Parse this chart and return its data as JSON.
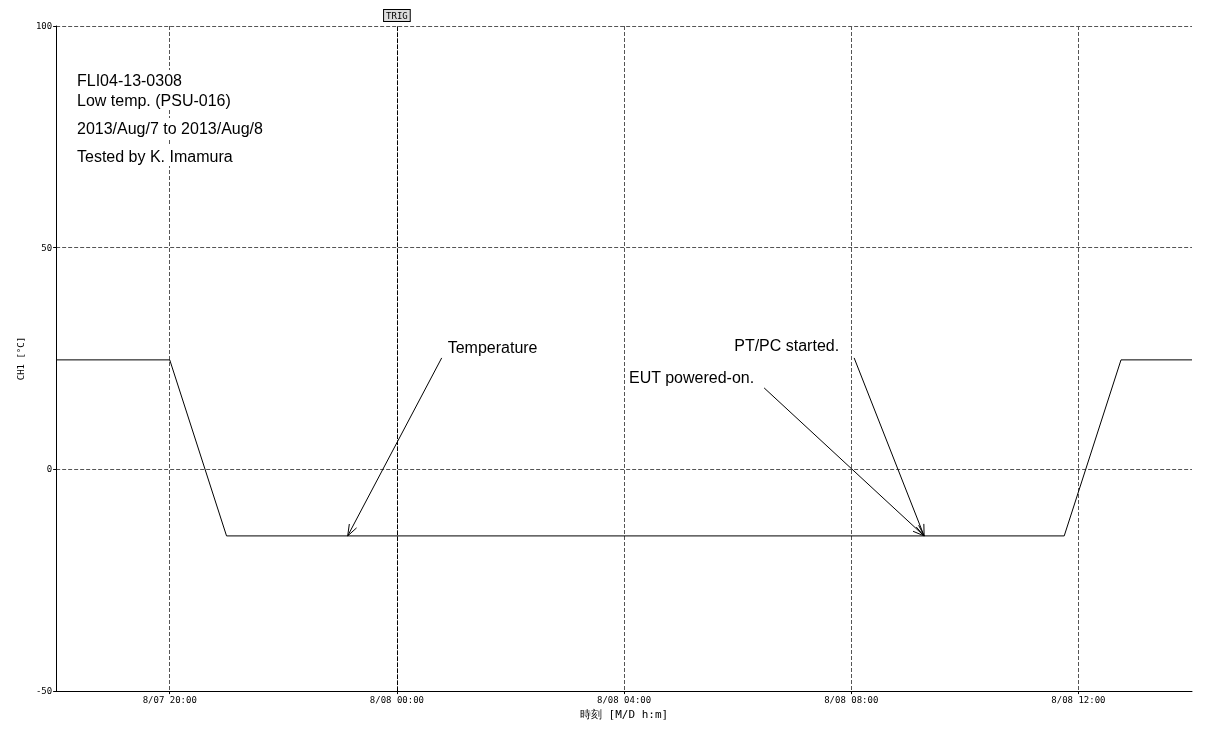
{
  "chart_data": {
    "type": "line",
    "ylabel": "CH1 [°C]",
    "xlabel": "時刻 [M/D h:m]",
    "series": [
      {
        "color": "#000000",
        "x": [
          "2013-08-07T18:00",
          "2013-08-07T20:00",
          "2013-08-07T21:00",
          "2013-08-08T11:45",
          "2013-08-08T12:45",
          "2013-08-08T14:00"
        ],
        "values": [
          24.7,
          24.7,
          -15,
          -15,
          24.7,
          24.7
        ]
      }
    ],
    "xlim": [
      "2013-08-07T18:00",
      "2013-08-08T14:00"
    ],
    "xticks": [
      {
        "value": "2013-08-07T20:00",
        "label": "8/07 20:00"
      },
      {
        "value": "2013-08-08T00:00",
        "label": "8/08 00:00"
      },
      {
        "value": "2013-08-08T04:00",
        "label": "8/08 04:00"
      },
      {
        "value": "2013-08-08T08:00",
        "label": "8/08 08:00"
      },
      {
        "value": "2013-08-08T12:00",
        "label": "8/08 12:00"
      }
    ],
    "ylim": [
      -50,
      100
    ],
    "yticks": [
      -50,
      0,
      50,
      100
    ],
    "grid": true,
    "marker": "none",
    "line_style": "solid",
    "ref_lines": [
      {
        "axis": "x",
        "value": "2013-08-08T00:00",
        "label": "TRIG",
        "color": "#000000",
        "line_style": "dashed"
      }
    ],
    "annotations": [
      "FLI04-13-0308",
      "Low temp. (PSU-016)",
      "2013/Aug/7 to 2013/Aug/8",
      "Tested by K. Imamura",
      {
        "text": "Temperature",
        "x": "2013-08-07T23:08",
        "y": -15
      },
      {
        "text": "EUT powered-on.",
        "x": "2013-08-08T09:17",
        "y": -15
      },
      {
        "text": "PT/PC started.",
        "x": "2013-08-08T09:17",
        "y": -15
      }
    ]
  }
}
